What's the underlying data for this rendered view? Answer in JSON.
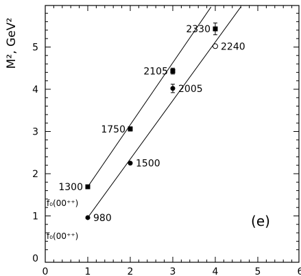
{
  "chart_data": {
    "type": "scatter",
    "ylabel": "M², GeV²",
    "panel_label": "(e)",
    "xlim": [
      0,
      6
    ],
    "ylim": [
      0,
      6
    ],
    "x_ticks": [
      "0",
      "1",
      "2",
      "3",
      "4",
      "5",
      "6"
    ],
    "y_ticks": [
      "0",
      "1",
      "2",
      "3",
      "4",
      "5"
    ],
    "state_labels": [
      {
        "text": "f₀(00⁺⁺)",
        "y": 1.2
      },
      {
        "text": "f₀(00⁺⁺)",
        "y": 0.42
      }
    ],
    "series": [
      {
        "marker": "filled-square",
        "points": [
          {
            "x": 1,
            "y": 1.69,
            "label": "1300",
            "err": 0.0
          },
          {
            "x": 2,
            "y": 3.06,
            "label": "1750",
            "err": 0.05
          },
          {
            "x": 3,
            "y": 4.43,
            "label": "2105",
            "err": 0.07
          },
          {
            "x": 4,
            "y": 5.43,
            "label": "2330",
            "err": 0.14
          }
        ],
        "line": [
          [
            1,
            1.69
          ],
          [
            3.9,
            5.95
          ]
        ]
      },
      {
        "marker": "filled-circle",
        "points": [
          {
            "x": 1,
            "y": 0.96,
            "label": "980",
            "err": 0.0,
            "marker": "filled-circle"
          },
          {
            "x": 2,
            "y": 2.25,
            "label": "1500",
            "err": 0.0,
            "marker": "filled-circle"
          },
          {
            "x": 3,
            "y": 4.02,
            "label": "2005",
            "err": 0.1,
            "marker": "filled-circle"
          },
          {
            "x": 4,
            "y": 5.02,
            "label": "2240",
            "err": 0.0,
            "marker": "open-circle"
          }
        ],
        "line": [
          [
            1,
            0.96
          ],
          [
            4.6,
            5.95
          ]
        ]
      }
    ]
  }
}
